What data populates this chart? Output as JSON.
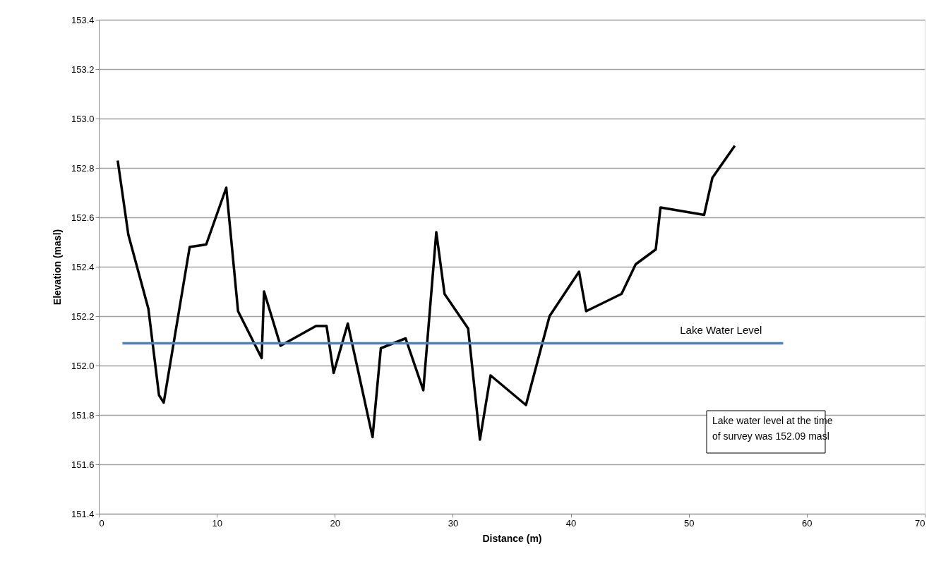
{
  "chart_data": {
    "type": "line",
    "xlabel": "Distance (m)",
    "ylabel": "Elevation (masl)",
    "xlim": [
      0,
      70
    ],
    "xticks": [
      0,
      10,
      20,
      30,
      40,
      50,
      60,
      70
    ],
    "ylim": [
      151.4,
      153.4
    ],
    "yticks": [
      151.4,
      151.6,
      151.8,
      {
        "value": 152,
        "label": "152.0"
      },
      152.2,
      152.4,
      152.6,
      152.8,
      {
        "value": 153,
        "label": "153.0"
      },
      153.2,
      153.4
    ],
    "grid": "y",
    "legend": false,
    "marker": "none",
    "line_style": "solid",
    "series": [
      {
        "color": "#000000",
        "x": [
          1.6,
          2.5,
          4.2,
          5.1,
          5.5,
          7.7,
          9.1,
          10.8,
          11.8,
          13.8,
          14.0,
          15.4,
          18.4,
          19.3,
          19.9,
          21.1,
          23.2,
          23.9,
          26.0,
          27.5,
          28.6,
          29.3,
          31.3,
          32.3,
          33.2,
          36.2,
          38.2,
          40.7,
          41.3,
          44.3,
          45.5,
          47.2,
          47.6,
          51.3,
          52.0,
          53.9
        ],
        "values": [
          152.83,
          152.53,
          152.23,
          151.88,
          151.85,
          152.48,
          152.49,
          152.72,
          152.22,
          152.03,
          152.3,
          152.08,
          152.16,
          152.16,
          151.97,
          152.17,
          151.71,
          152.07,
          152.11,
          151.9,
          152.54,
          152.29,
          152.15,
          151.7,
          151.96,
          151.84,
          152.2,
          152.38,
          152.22,
          152.29,
          152.41,
          152.47,
          152.64,
          152.61,
          152.76,
          152.89
        ]
      },
      {
        "name": "Lake Water Level",
        "color": "#4f81bd",
        "x": [
          2,
          58
        ],
        "values": [
          152.09,
          152.09
        ]
      }
    ],
    "annotations": [
      "Lake water level  at the time of survey was  152.09 masl"
    ]
  }
}
